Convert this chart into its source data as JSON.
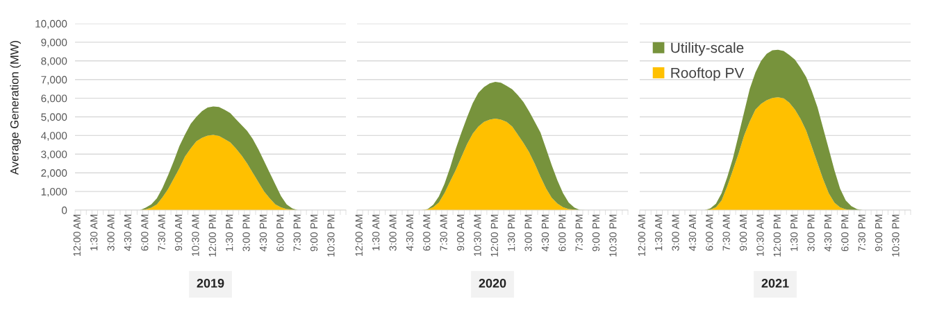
{
  "chart_data": [
    {
      "type": "area",
      "stacked": true,
      "xlabel": "2019",
      "ylabel": "Average Generation (MW)",
      "ylim": [
        0,
        10000
      ],
      "yticks": [
        {
          "value": 0,
          "label": "0"
        },
        {
          "value": 1000,
          "label": "1,000"
        },
        {
          "value": 2000,
          "label": "2,000"
        },
        {
          "value": 3000,
          "label": "3,000"
        },
        {
          "value": 4000,
          "label": "4,000"
        },
        {
          "value": 5000,
          "label": "5,000"
        },
        {
          "value": 6000,
          "label": "6,000"
        },
        {
          "value": 7000,
          "label": "7,000"
        },
        {
          "value": 8000,
          "label": "8,000"
        },
        {
          "value": 9000,
          "label": "9,000"
        },
        {
          "value": 10000,
          "label": "10,000"
        }
      ],
      "grid": "y",
      "categories": [
        "12:00 AM",
        null,
        null,
        "1:30 AM",
        null,
        null,
        "3:00 AM",
        null,
        null,
        "4:30 AM",
        null,
        null,
        "6:00 AM",
        null,
        null,
        "7:30 AM",
        null,
        null,
        "9:00 AM",
        null,
        null,
        "10:30 AM",
        null,
        null,
        "12:00 PM",
        null,
        null,
        "1:30 PM",
        null,
        null,
        "3:00 PM",
        null,
        null,
        "4:30 PM",
        null,
        null,
        "6:00 PM",
        null,
        null,
        "7:30 PM",
        null,
        null,
        "9:00 PM",
        null,
        null,
        "10:30 PM",
        null,
        null
      ],
      "series": [
        {
          "color": "#ffc000",
          "values": [
            0,
            0,
            0,
            0,
            0,
            0,
            0,
            0,
            0,
            0,
            0,
            0,
            40,
            130,
            310,
            690,
            1130,
            1690,
            2250,
            2880,
            3310,
            3690,
            3880,
            4000,
            4030,
            3980,
            3810,
            3630,
            3310,
            2940,
            2500,
            2000,
            1500,
            1000,
            630,
            310,
            150,
            60,
            30,
            0,
            0,
            0,
            0,
            0,
            0,
            0,
            0,
            0
          ]
        },
        {
          "color": "#77933c",
          "values": [
            0,
            0,
            0,
            0,
            0,
            0,
            0,
            0,
            0,
            0,
            0,
            0,
            90,
            180,
            320,
            500,
            750,
            940,
            1190,
            1180,
            1320,
            1310,
            1430,
            1500,
            1530,
            1550,
            1570,
            1570,
            1570,
            1620,
            1750,
            1810,
            1750,
            1630,
            1370,
            1070,
            600,
            250,
            60,
            0,
            0,
            0,
            0,
            0,
            0,
            0,
            0,
            0
          ]
        }
      ]
    },
    {
      "type": "area",
      "stacked": true,
      "xlabel": "2020",
      "ylim": [
        0,
        10000
      ],
      "yticks": [
        0,
        1000,
        2000,
        3000,
        4000,
        5000,
        6000,
        7000,
        8000,
        9000,
        10000
      ],
      "grid": "y",
      "tick_labels": "x",
      "categories": [
        "12:00 AM",
        null,
        null,
        "1:30 AM",
        null,
        null,
        "3:00 AM",
        null,
        null,
        "4:30 AM",
        null,
        null,
        "6:00 AM",
        null,
        null,
        "7:30 AM",
        null,
        null,
        "9:00 AM",
        null,
        null,
        "10:30 AM",
        null,
        null,
        "12:00 PM",
        null,
        null,
        "1:30 PM",
        null,
        null,
        "3:00 PM",
        null,
        null,
        "4:30 PM",
        null,
        null,
        "6:00 PM",
        null,
        null,
        "7:30 PM",
        null,
        null,
        "9:00 PM",
        null,
        null,
        "10:30 PM",
        null,
        null
      ],
      "series": [
        {
          "color": "#ffc000",
          "values": [
            0,
            0,
            0,
            0,
            0,
            0,
            0,
            0,
            0,
            0,
            0,
            0,
            40,
            160,
            410,
            910,
            1540,
            2160,
            2850,
            3540,
            4100,
            4480,
            4730,
            4850,
            4910,
            4850,
            4730,
            4480,
            4040,
            3600,
            3100,
            2480,
            1790,
            1160,
            660,
            350,
            160,
            60,
            30,
            0,
            0,
            0,
            0,
            0,
            0,
            0,
            0,
            0
          ]
        },
        {
          "color": "#77933c",
          "values": [
            0,
            0,
            0,
            0,
            0,
            0,
            0,
            0,
            0,
            0,
            0,
            0,
            20,
            130,
            320,
            500,
            750,
            1130,
            1310,
            1440,
            1630,
            1810,
            1870,
            1940,
            1970,
            1980,
            1930,
            2000,
            2120,
            2190,
            2190,
            2250,
            2370,
            2130,
            1750,
            1250,
            750,
            350,
            110,
            10,
            0,
            0,
            0,
            0,
            0,
            0,
            0,
            0
          ]
        }
      ]
    },
    {
      "type": "area",
      "stacked": true,
      "xlabel": "2021",
      "ylim": [
        0,
        10000
      ],
      "yticks": [
        0,
        1000,
        2000,
        3000,
        4000,
        5000,
        6000,
        7000,
        8000,
        9000,
        10000
      ],
      "grid": "y",
      "tick_labels": "x",
      "legend": "top left",
      "categories": [
        "12:00 AM",
        null,
        null,
        "1:30 AM",
        null,
        null,
        "3:00 AM",
        null,
        null,
        "4:30 AM",
        null,
        null,
        "6:00 AM",
        null,
        null,
        "7:30 AM",
        null,
        null,
        "9:00 AM",
        null,
        null,
        "10:30 AM",
        null,
        null,
        "12:00 PM",
        null,
        null,
        "1:30 PM",
        null,
        null,
        "3:00 PM",
        null,
        null,
        "4:30 PM",
        null,
        null,
        "6:00 PM",
        null,
        null,
        "7:30 PM",
        null,
        null,
        "9:00 PM",
        null,
        null,
        "10:30 PM",
        null,
        null
      ],
      "series": [
        {
          "name": "Rooftop PV",
          "color": "#ffc000",
          "values": [
            0,
            0,
            0,
            0,
            0,
            0,
            0,
            0,
            0,
            0,
            0,
            0,
            30,
            150,
            520,
            1270,
            2140,
            3020,
            4010,
            4760,
            5390,
            5700,
            5890,
            6010,
            6050,
            5990,
            5760,
            5390,
            4890,
            4260,
            3390,
            2520,
            1650,
            900,
            400,
            150,
            50,
            10,
            0,
            0,
            0,
            0,
            0,
            0,
            0,
            0,
            0,
            0
          ]
        },
        {
          "name": "Utility-scale",
          "color": "#77933c",
          "values": [
            0,
            0,
            0,
            0,
            0,
            0,
            0,
            0,
            0,
            0,
            0,
            0,
            60,
            190,
            380,
            500,
            630,
            990,
            1250,
            1750,
            1990,
            2300,
            2490,
            2560,
            2550,
            2540,
            2560,
            2680,
            2740,
            2870,
            2990,
            2990,
            2740,
            2370,
            1740,
            1000,
            470,
            200,
            60,
            0,
            0,
            0,
            0,
            0,
            0,
            0,
            0,
            0
          ]
        }
      ]
    }
  ]
}
